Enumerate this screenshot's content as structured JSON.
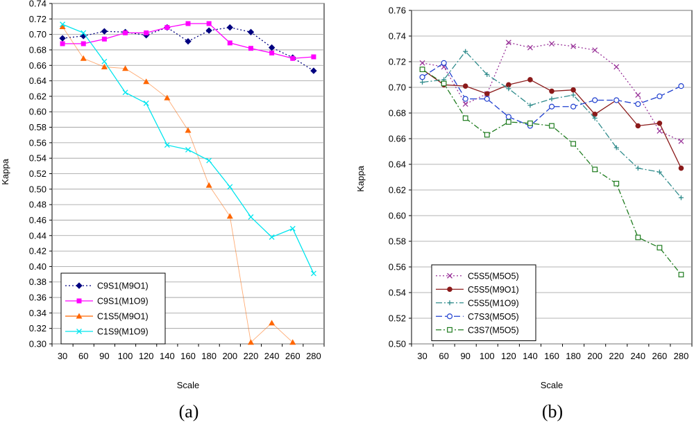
{
  "chart_data": [
    {
      "type": "line",
      "panel_label": "(a)",
      "xlabel": "Scale",
      "ylabel": "Kappa",
      "categories": [
        30,
        60,
        90,
        100,
        120,
        140,
        160,
        180,
        200,
        220,
        240,
        260,
        280
      ],
      "category_labels": [
        "30",
        "60",
        "90",
        "100",
        "120",
        "140",
        "160",
        "180",
        "200",
        "220",
        "240",
        "260",
        "280"
      ],
      "ylim": [
        0.3,
        0.74
      ],
      "yticks": [
        0.3,
        0.32,
        0.34,
        0.36,
        0.38,
        0.4,
        0.42,
        0.44,
        0.46,
        0.48,
        0.5,
        0.52,
        0.54,
        0.56,
        0.58,
        0.6,
        0.62,
        0.64,
        0.66,
        0.68,
        0.7,
        0.72,
        0.74
      ],
      "legend_position": "bottom-left",
      "series": [
        {
          "name": "C9S1(M9O1)",
          "color": "#000080",
          "marker": "diamond",
          "dash": "2,3",
          "values": [
            0.695,
            0.698,
            0.704,
            0.703,
            0.699,
            0.709,
            0.691,
            0.705,
            0.709,
            0.703,
            0.683,
            0.67,
            0.653
          ]
        },
        {
          "name": "C9S1(M1O9)",
          "color": "#ff00ff",
          "marker": "square",
          "dash": "",
          "values": [
            0.688,
            0.688,
            0.694,
            0.702,
            0.702,
            0.709,
            0.714,
            0.714,
            0.689,
            0.682,
            0.676,
            0.669,
            0.671
          ]
        },
        {
          "name": "C1S5(M9O1)",
          "color": "#ff6600",
          "marker": "triangle",
          "dash": "",
          "values": [
            0.71,
            0.669,
            0.658,
            0.656,
            0.639,
            0.618,
            0.576,
            0.505,
            0.465,
            0.302,
            0.327,
            0.302,
            null
          ]
        },
        {
          "name": "C1S9(M1O9)",
          "color": "#00e5ee",
          "marker": "x",
          "dash": "",
          "values": [
            0.713,
            0.702,
            0.665,
            0.625,
            0.611,
            0.557,
            0.551,
            0.537,
            0.503,
            0.464,
            0.438,
            0.449,
            0.391
          ]
        }
      ]
    },
    {
      "type": "line",
      "panel_label": "(b)",
      "xlabel": "Scale",
      "ylabel": "Kappa",
      "categories": [
        30,
        60,
        90,
        100,
        120,
        140,
        160,
        180,
        200,
        220,
        240,
        260,
        280
      ],
      "category_labels": [
        "30",
        "60",
        "90",
        "100",
        "120",
        "140",
        "160",
        "180",
        "200",
        "220",
        "240",
        "260",
        "280"
      ],
      "ylim": [
        0.5,
        0.76
      ],
      "yticks": [
        0.5,
        0.52,
        0.54,
        0.56,
        0.58,
        0.6,
        0.62,
        0.64,
        0.66,
        0.68,
        0.7,
        0.72,
        0.74,
        0.76
      ],
      "legend_position": "bottom-left",
      "series": [
        {
          "name": "C5S5(M5O5)",
          "color": "#993399",
          "marker": "x",
          "dash": "2,3",
          "values": [
            0.719,
            0.716,
            0.687,
            0.695,
            0.735,
            0.731,
            0.734,
            0.732,
            0.729,
            0.716,
            0.694,
            0.666,
            0.658
          ]
        },
        {
          "name": "C5S5(M9O1)",
          "color": "#8b1a1a",
          "marker": "circle-filled",
          "dash": "",
          "values": [
            0.714,
            0.702,
            0.701,
            0.695,
            0.702,
            0.706,
            0.697,
            0.698,
            0.679,
            0.69,
            0.67,
            0.672,
            0.637
          ]
        },
        {
          "name": "C5S5(M1O9)",
          "color": "#2e8b8b",
          "marker": "plus",
          "dash": "9,3,2,3",
          "values": [
            0.704,
            0.706,
            0.728,
            0.71,
            0.699,
            0.686,
            0.691,
            0.694,
            0.676,
            0.653,
            0.637,
            0.634,
            0.614
          ]
        },
        {
          "name": "C7S3(M5O5)",
          "color": "#1f3fcf",
          "marker": "circle-open",
          "dash": "9,4",
          "values": [
            0.708,
            0.719,
            0.691,
            0.691,
            0.677,
            0.67,
            0.685,
            0.685,
            0.69,
            0.69,
            0.687,
            0.693,
            0.701
          ]
        },
        {
          "name": "C3S7(M5O5)",
          "color": "#1e7b1e",
          "marker": "square-open",
          "dash": "8,3,2,3",
          "values": [
            0.714,
            0.703,
            0.676,
            0.663,
            0.673,
            0.672,
            0.67,
            0.656,
            0.636,
            0.625,
            0.583,
            0.575,
            0.554
          ]
        }
      ]
    }
  ]
}
